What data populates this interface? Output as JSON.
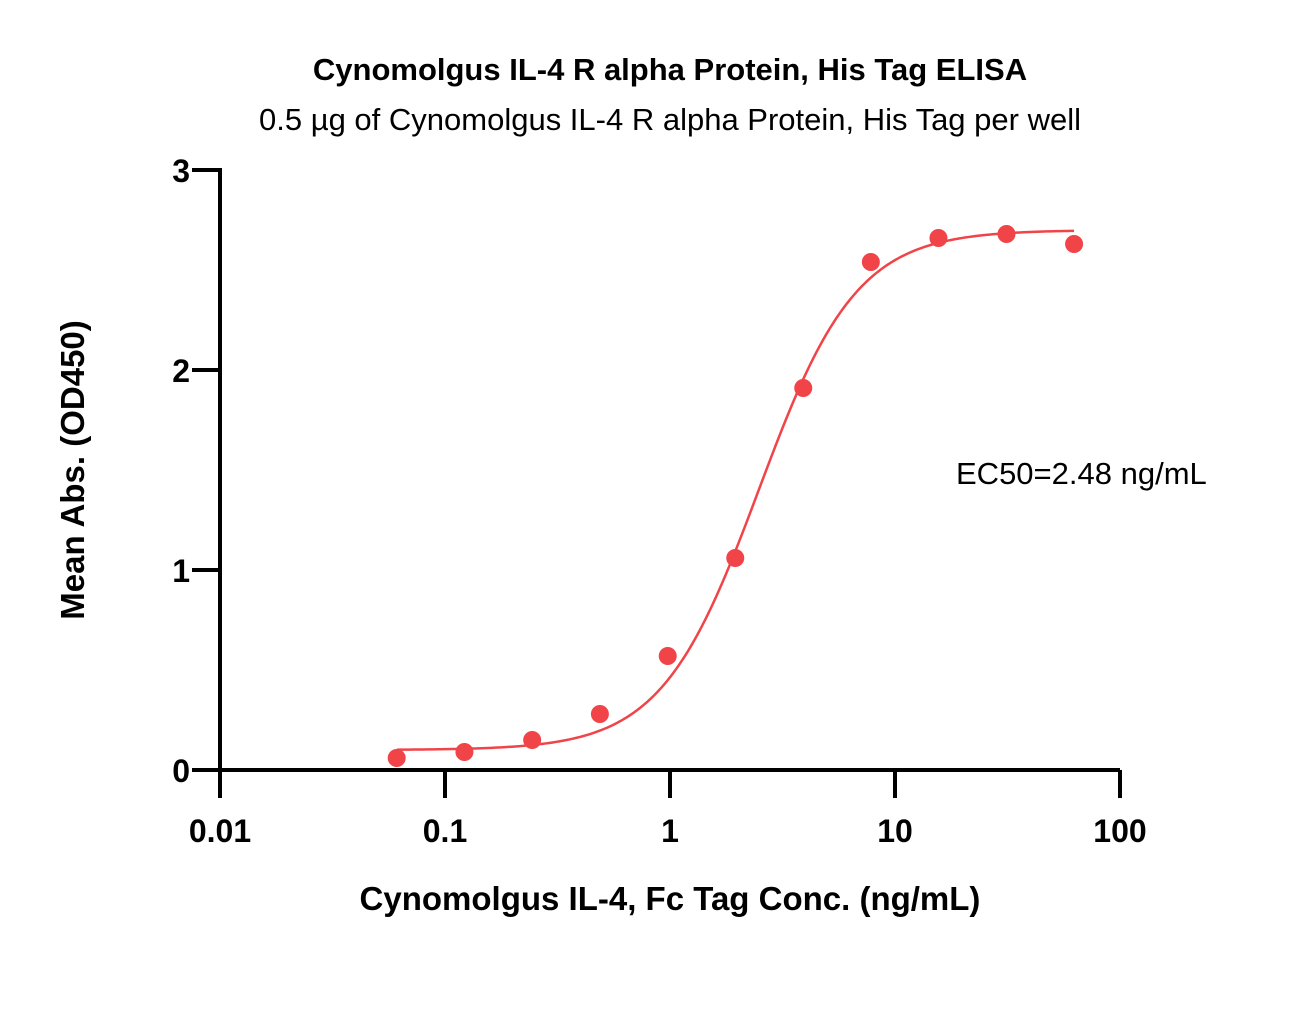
{
  "chart_data": {
    "type": "scatter",
    "title": "Cynomolgus IL-4 R alpha Protein, His Tag ELISA",
    "subtitle": "0.5 µg of Cynomolgus IL-4 R alpha Protein, His Tag per well",
    "xlabel": "Cynomolgus IL-4, Fc Tag Conc. (ng/mL)",
    "ylabel": "Mean Abs. (OD450)",
    "x_scale": "log",
    "xlim": [
      0.01,
      100
    ],
    "ylim": [
      0,
      3
    ],
    "x_ticks": [
      0.01,
      0.1,
      1,
      10,
      100
    ],
    "x_tick_labels": [
      "0.01",
      "0.1",
      "1",
      "10",
      "100"
    ],
    "y_ticks": [
      0,
      1,
      2,
      3
    ],
    "y_tick_labels": [
      "0",
      "1",
      "2",
      "3"
    ],
    "grid": false,
    "annotation": "EC50=2.48 ng/mL",
    "series": [
      {
        "color": "#f04448",
        "x": [
          0.061,
          0.122,
          0.244,
          0.488,
          0.977,
          1.95,
          3.91,
          7.81,
          15.6,
          31.3,
          62.5
        ],
        "y": [
          0.06,
          0.09,
          0.15,
          0.28,
          0.57,
          1.06,
          1.91,
          2.54,
          2.66,
          2.68,
          2.63
        ]
      }
    ],
    "fit": {
      "model": "4PL",
      "color": "#f04448",
      "bottom": 0.1,
      "top": 2.7,
      "ec50": 2.48,
      "hill": 2.0,
      "x_range": [
        0.061,
        62.5
      ]
    }
  }
}
